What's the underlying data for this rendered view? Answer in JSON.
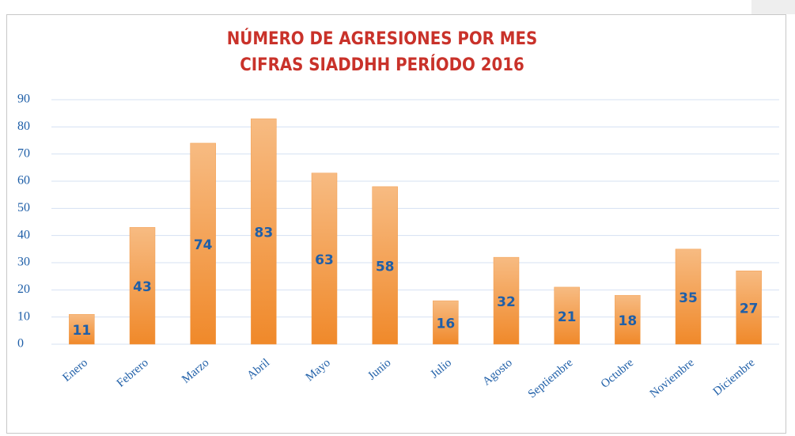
{
  "chart_data": {
    "type": "bar",
    "title": "NÚMERO DE AGRESIONES POR MES",
    "subtitle": "CIFRAS SIADDHH PERÍODO 2016",
    "categories": [
      "Enero",
      "Febrero",
      "Marzo",
      "Abril",
      "Mayo",
      "Junio",
      "Julio",
      "Agosto",
      "Septiembre",
      "Octubre",
      "Noviembre",
      "Diciembre"
    ],
    "values": [
      11,
      43,
      74,
      83,
      63,
      58,
      16,
      32,
      21,
      18,
      35,
      27
    ],
    "color": "#f39c4c",
    "ylim": [
      0,
      90
    ],
    "yticks": [
      0,
      10,
      20,
      30,
      40,
      50,
      60,
      70,
      80,
      90
    ],
    "grid": true
  }
}
